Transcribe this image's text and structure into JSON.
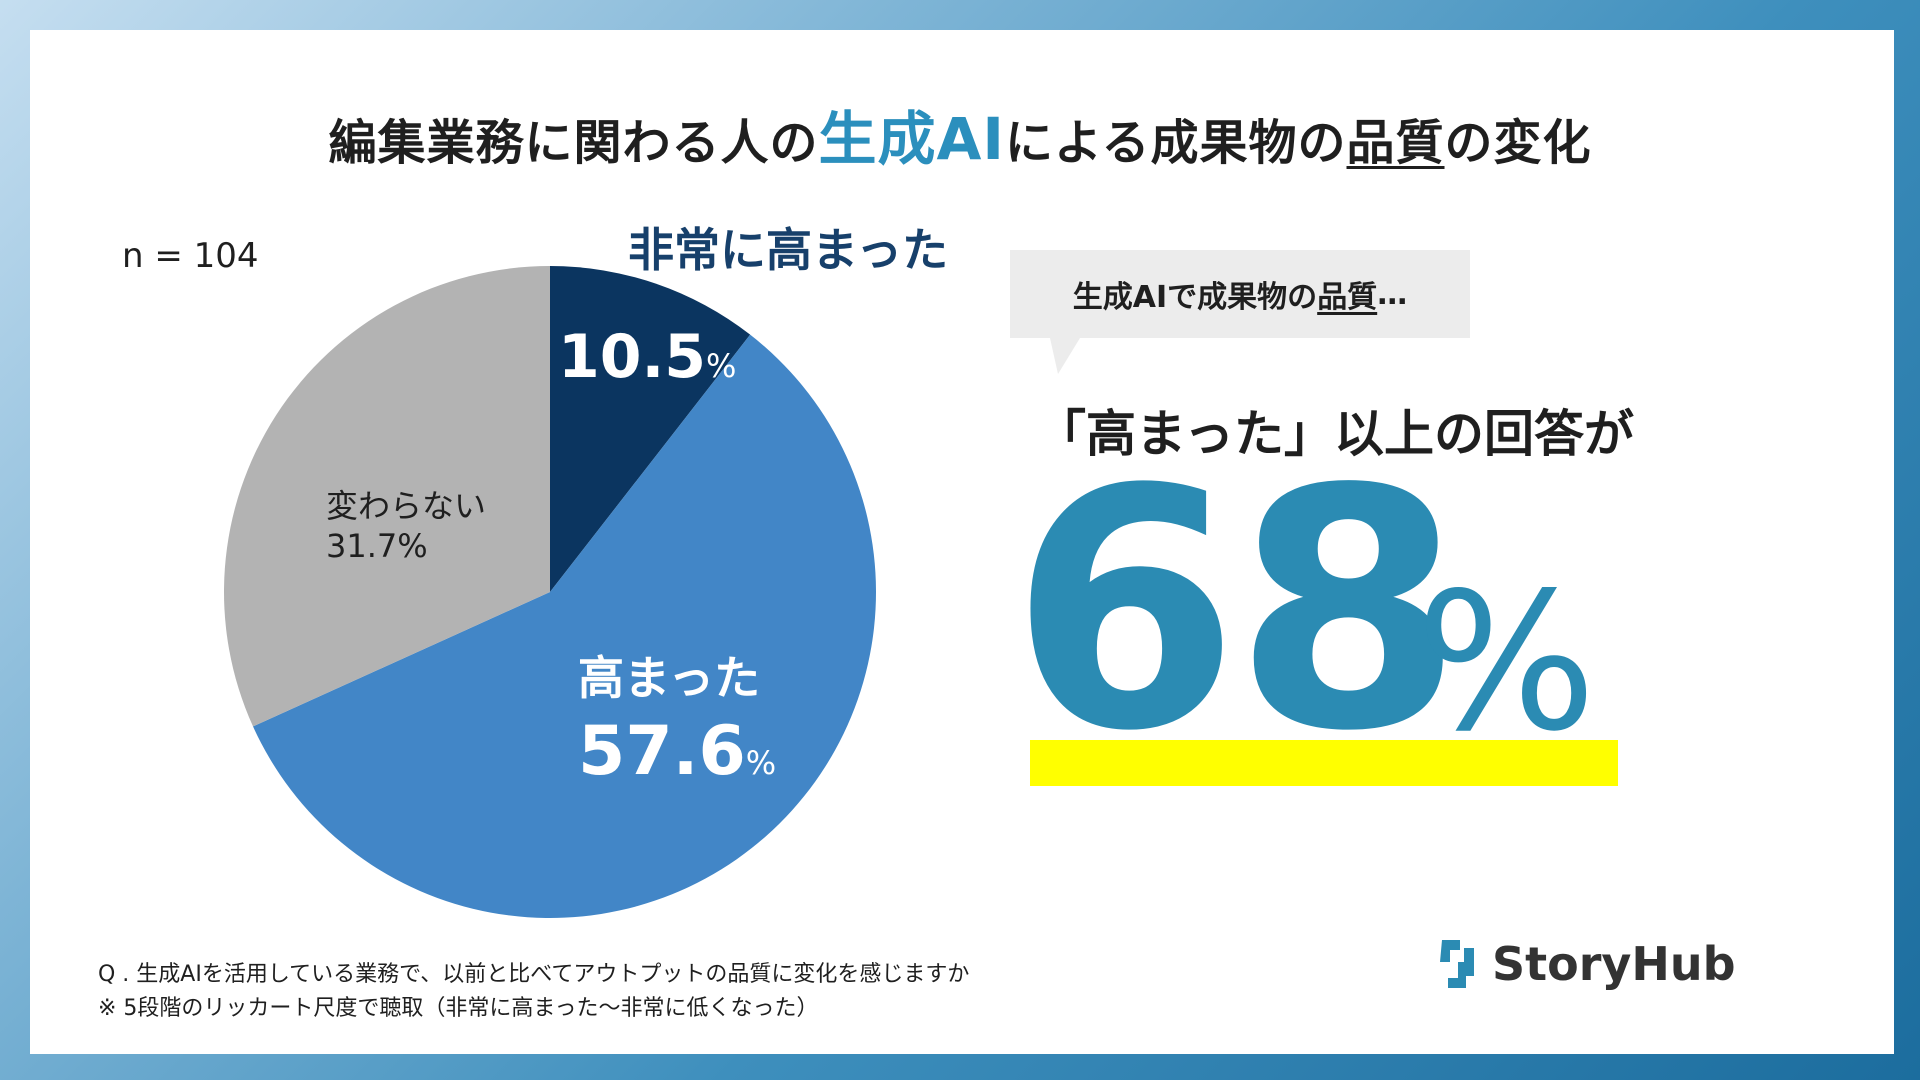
{
  "title": {
    "part1": "編集業務に関わる人の",
    "accent": "生成AI",
    "part2": "による成果物の",
    "underlined": "品質",
    "part3": "の変化"
  },
  "sample_size": "n = 104",
  "labels": {
    "very_increased": "非常に高まった",
    "very_increased_value": "10.5",
    "increased": "高まった",
    "increased_value": "57.6",
    "pct_symbol": "%",
    "unchanged": "変わらない",
    "unchanged_value": "31.7%"
  },
  "callout": {
    "bubble_part1": "生成AIで成果物の",
    "bubble_underlined": "品質",
    "bubble_part2": "…",
    "response": "「高まった」以上の回答が",
    "big_number": "68",
    "big_pct": "%"
  },
  "footnote": {
    "question": "Q . 生成AIを活用している業務で、以前と比べてアウトプットの品質に変化を感じますか",
    "note": "※ 5段階のリッカート尺度で聴取（非常に高まった〜非常に低くなった）"
  },
  "logo": {
    "text": "StoryHub",
    "icon": "storyhub-logo-icon"
  },
  "colors": {
    "very_increased": "#0b3560",
    "increased": "#4286c7",
    "unchanged": "#b3b3b3",
    "accent": "#2b8bb3",
    "highlight": "#ffff00"
  },
  "chart_data": {
    "type": "pie",
    "title": "",
    "categories": [
      "非常に高まった",
      "高まった",
      "変わらない"
    ],
    "values": [
      10.5,
      57.6,
      31.7
    ],
    "start": "12 o'clock",
    "direction": "clockwise"
  }
}
